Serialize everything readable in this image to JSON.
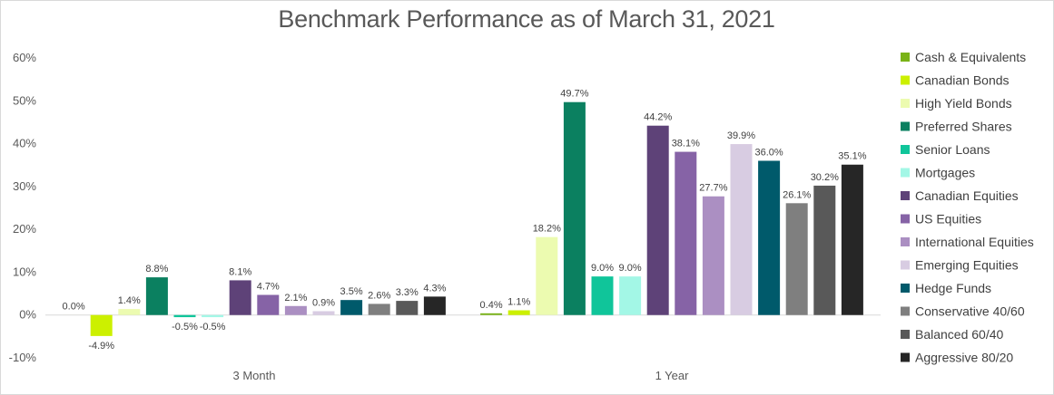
{
  "chart_data": {
    "type": "bar",
    "title": "Benchmark Performance as of March 31, 2021",
    "xlabel": "",
    "ylabel": "",
    "ylim": [
      -10,
      60
    ],
    "yticks": [
      -10,
      0,
      10,
      20,
      30,
      40,
      50,
      60
    ],
    "ytick_labels": [
      "-10%",
      "0%",
      "10%",
      "20%",
      "30%",
      "40%",
      "50%",
      "60%"
    ],
    "categories": [
      "3 Month",
      "1 Year"
    ],
    "legend_position": "right",
    "grid": false,
    "series": [
      {
        "name": "Cash & Equivalents",
        "color": "#7ab317",
        "values": [
          0.0,
          0.4
        ],
        "labels": [
          "0.0%",
          "0.4%"
        ]
      },
      {
        "name": "Canadian Bonds",
        "color": "#ccf000",
        "values": [
          -4.9,
          1.1
        ],
        "labels": [
          "-4.9%",
          "1.1%"
        ]
      },
      {
        "name": "High Yield Bonds",
        "color": "#ecfbb0",
        "values": [
          1.4,
          18.2
        ],
        "labels": [
          "1.4%",
          "18.2%"
        ]
      },
      {
        "name": "Preferred Shares",
        "color": "#0b8060",
        "values": [
          8.8,
          49.7
        ],
        "labels": [
          "8.8%",
          "49.7%"
        ]
      },
      {
        "name": "Senior Loans",
        "color": "#10c59a",
        "values": [
          -0.5,
          9.0
        ],
        "labels": [
          "-0.5%",
          "9.0%"
        ]
      },
      {
        "name": "Mortgages",
        "color": "#a3f7e6",
        "values": [
          -0.5,
          9.0
        ],
        "labels": [
          "-0.5%",
          "9.0%"
        ]
      },
      {
        "name": "Canadian Equities",
        "color": "#5e4278",
        "values": [
          8.1,
          44.2
        ],
        "labels": [
          "8.1%",
          "44.2%"
        ]
      },
      {
        "name": "US Equities",
        "color": "#8663a6",
        "values": [
          4.7,
          38.1
        ],
        "labels": [
          "4.7%",
          "38.1%"
        ]
      },
      {
        "name": "International Equities",
        "color": "#ab8fc2",
        "values": [
          2.1,
          27.7
        ],
        "labels": [
          "2.1%",
          "27.7%"
        ]
      },
      {
        "name": "Emerging Equities",
        "color": "#d8cce2",
        "values": [
          0.9,
          39.9
        ],
        "labels": [
          "0.9%",
          "39.9%"
        ]
      },
      {
        "name": "Hedge Funds",
        "color": "#005a6b",
        "values": [
          3.5,
          36.0
        ],
        "labels": [
          "3.5%",
          "36.0%"
        ]
      },
      {
        "name": "Conservative 40/60",
        "color": "#7f7f7f",
        "values": [
          2.6,
          26.1
        ],
        "labels": [
          "2.6%",
          "26.1%"
        ]
      },
      {
        "name": "Balanced 60/40",
        "color": "#595959",
        "values": [
          3.3,
          30.2
        ],
        "labels": [
          "3.3%",
          "30.2%"
        ]
      },
      {
        "name": "Aggressive 80/20",
        "color": "#262626",
        "values": [
          4.3,
          35.1
        ],
        "labels": [
          "4.3%",
          "35.1%"
        ]
      }
    ]
  }
}
